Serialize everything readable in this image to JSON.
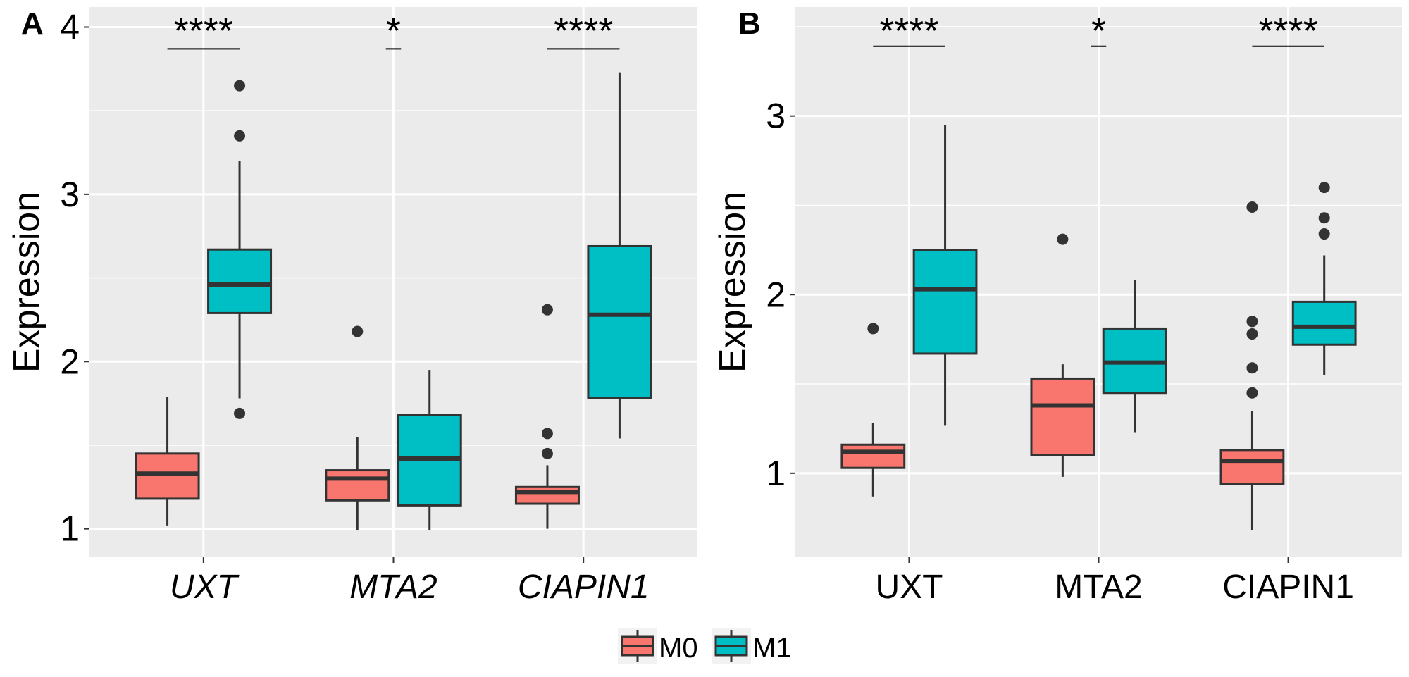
{
  "chart_data": [
    {
      "type": "boxplot",
      "panel_label": "A",
      "ylabel": "Expression",
      "ylim": [
        0.83,
        4.12
      ],
      "yticks": [
        "1",
        "2",
        "3",
        "4"
      ],
      "categories": [
        "UXT",
        "MTA2",
        "CIAPIN1"
      ],
      "category_style": "italic",
      "grid": true,
      "significance": [
        "****",
        "*",
        "****"
      ],
      "significance_y": 3.87,
      "series": [
        {
          "name": "M0",
          "color": "#F8766D",
          "boxes": [
            {
              "low": 1.02,
              "q1": 1.18,
              "median": 1.33,
              "q3": 1.45,
              "high": 1.79,
              "outliers": []
            },
            {
              "low": 0.99,
              "q1": 1.17,
              "median": 1.3,
              "q3": 1.35,
              "high": 1.55,
              "outliers": [
                2.18
              ]
            },
            {
              "low": 1.0,
              "q1": 1.15,
              "median": 1.22,
              "q3": 1.25,
              "high": 1.38,
              "outliers": [
                2.31,
                1.57,
                1.45
              ]
            }
          ]
        },
        {
          "name": "M1",
          "color": "#00BFC4",
          "boxes": [
            {
              "low": 1.78,
              "q1": 2.29,
              "median": 2.46,
              "q3": 2.67,
              "high": 3.2,
              "outliers": [
                3.65,
                3.35,
                1.69
              ]
            },
            {
              "low": 0.99,
              "q1": 1.14,
              "median": 1.42,
              "q3": 1.68,
              "high": 1.95,
              "outliers": []
            },
            {
              "low": 1.54,
              "q1": 1.78,
              "median": 2.28,
              "q3": 2.69,
              "high": 3.73,
              "outliers": []
            }
          ]
        }
      ]
    },
    {
      "type": "boxplot",
      "panel_label": "B",
      "ylabel": "Expression",
      "ylim": [
        0.53,
        3.61
      ],
      "yticks": [
        "1",
        "2",
        "3"
      ],
      "categories": [
        "UXT",
        "MTA2",
        "CIAPIN1"
      ],
      "category_style": "normal",
      "grid": true,
      "significance": [
        "****",
        "*",
        "****"
      ],
      "significance_y": 3.39,
      "series": [
        {
          "name": "M0",
          "color": "#F8766D",
          "boxes": [
            {
              "low": 0.87,
              "q1": 1.03,
              "median": 1.12,
              "q3": 1.16,
              "high": 1.28,
              "outliers": [
                1.81
              ]
            },
            {
              "low": 0.98,
              "q1": 1.1,
              "median": 1.38,
              "q3": 1.53,
              "high": 1.61,
              "outliers": [
                2.31
              ]
            },
            {
              "low": 0.68,
              "q1": 0.94,
              "median": 1.07,
              "q3": 1.13,
              "high": 1.35,
              "outliers": [
                2.49,
                1.85,
                1.78,
                1.59,
                1.45
              ]
            }
          ]
        },
        {
          "name": "M1",
          "color": "#00BFC4",
          "boxes": [
            {
              "low": 1.27,
              "q1": 1.67,
              "median": 2.03,
              "q3": 2.25,
              "high": 2.95,
              "outliers": []
            },
            {
              "low": 1.23,
              "q1": 1.45,
              "median": 1.62,
              "q3": 1.81,
              "high": 2.08,
              "outliers": []
            },
            {
              "low": 1.55,
              "q1": 1.72,
              "median": 1.82,
              "q3": 1.96,
              "high": 2.22,
              "outliers": [
                2.6,
                2.43,
                2.34
              ]
            }
          ]
        }
      ]
    }
  ],
  "legend": {
    "position": "bottom",
    "items": [
      "M0",
      "M1"
    ]
  }
}
